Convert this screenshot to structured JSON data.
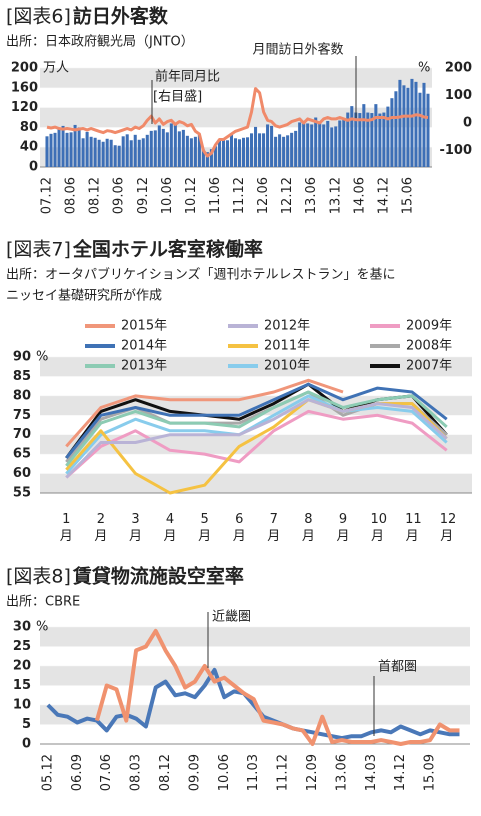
{
  "chart_data": [
    {
      "type": "bar",
      "figure_label": "[図表6]",
      "title": "訪日外客数",
      "source": [
        "出所：日本政府観光局（JNTO）"
      ],
      "y_unit": "万人",
      "y2_unit": "%",
      "annotations": [
        "[右目盛]"
      ],
      "bands": true,
      "categories": [
        "07.12",
        null,
        null,
        null,
        null,
        null,
        "08.06",
        null,
        null,
        null,
        null,
        null,
        "08.12",
        null,
        null,
        null,
        null,
        null,
        "09.06",
        null,
        null,
        null,
        null,
        null,
        "09.12",
        null,
        null,
        null,
        null,
        null,
        "10.06",
        null,
        null,
        null,
        null,
        null,
        "10.12",
        null,
        null,
        null,
        null,
        null,
        "11.06",
        null,
        null,
        null,
        null,
        null,
        "11.12",
        null,
        null,
        null,
        null,
        null,
        "12.06",
        null,
        null,
        null,
        null,
        null,
        "12.12",
        null,
        null,
        null,
        null,
        null,
        "13.06",
        null,
        null,
        null,
        null,
        null,
        "13.12",
        null,
        null,
        null,
        null,
        null,
        "14.06",
        null,
        null,
        null,
        null,
        null,
        "14.12",
        null,
        null,
        null,
        null,
        null,
        "15.06",
        null,
        null,
        null,
        null,
        null
      ],
      "ylim": [
        0,
        200
      ],
      "yticks": [
        0,
        40,
        80,
        120,
        160,
        200
      ],
      "y2lim": [
        -160,
        200
      ],
      "y2ticks": [
        -100,
        0,
        100,
        200
      ],
      "series": [
        {
          "name": "月間訪日外客数",
          "color": "#3d6fb6",
          "values": [
            62,
            67,
            69,
            77,
            83,
            69,
            70,
            85,
            80,
            58,
            71,
            61,
            59,
            55,
            51,
            57,
            55,
            44,
            43,
            62,
            66,
            54,
            65,
            55,
            58,
            65,
            73,
            74,
            84,
            77,
            70,
            88,
            87,
            72,
            75,
            63,
            58,
            61,
            65,
            35,
            30,
            36,
            42,
            56,
            55,
            54,
            68,
            58,
            56,
            59,
            60,
            68,
            81,
            68,
            68,
            86,
            83,
            61,
            66,
            61,
            64,
            69,
            73,
            90,
            92,
            88,
            86,
            100,
            91,
            86,
            93,
            80,
            82,
            94,
            95,
            110,
            123,
            110,
            109,
            127,
            110,
            109,
            127,
            108,
            110,
            122,
            139,
            153,
            176,
            165,
            160,
            178,
            172,
            150,
            170,
            148
          ]
        },
        {
          "name": "前年同月比",
          "color": "#f08a6a",
          "axis": "y2",
          "values": [
            -15,
            -18,
            -15,
            -20,
            -22,
            -20,
            -22,
            -25,
            -22,
            -20,
            -25,
            -20,
            -25,
            -30,
            -35,
            -28,
            -30,
            -35,
            -30,
            -25,
            -20,
            -25,
            -15,
            -20,
            -10,
            10,
            25,
            0,
            15,
            -5,
            5,
            10,
            -5,
            5,
            0,
            -10,
            -5,
            -30,
            -40,
            -100,
            -120,
            -110,
            -80,
            -60,
            -60,
            -50,
            -40,
            -30,
            -25,
            -20,
            -15,
            40,
            125,
            110,
            40,
            10,
            5,
            -10,
            -15,
            -10,
            -5,
            5,
            10,
            15,
            0,
            15,
            10,
            5,
            0,
            15,
            20,
            15,
            15,
            20,
            15,
            10,
            15,
            12,
            12,
            12,
            10,
            12,
            20,
            20,
            20,
            15,
            20,
            20,
            22,
            25,
            25,
            25,
            30,
            28,
            22,
            20
          ]
        }
      ]
    },
    {
      "type": "line",
      "figure_label": "[図表7]",
      "title": "全国ホテル客室稼働率",
      "source": [
        "出所：オータパブリケイションズ「週刊ホテルレストラン」を基に",
        "ニッセイ基礎研究所が作成"
      ],
      "y_unit": "%",
      "bands": true,
      "categories": [
        "1月",
        "2月",
        "3月",
        "4月",
        "5月",
        "6月",
        "7月",
        "8月",
        "9月",
        "10月",
        "11月",
        "12月"
      ],
      "ylim": [
        55,
        90
      ],
      "yticks": [
        55,
        60,
        65,
        70,
        75,
        80,
        85,
        90
      ],
      "series": [
        {
          "name": "2015年",
          "color": "#f0967a",
          "values": [
            67,
            77,
            80,
            79,
            79,
            79,
            81,
            84,
            81,
            null,
            null,
            null
          ]
        },
        {
          "name": "2014年",
          "color": "#3f72b5",
          "values": [
            64,
            75,
            77,
            75,
            75,
            75,
            79,
            83,
            79,
            82,
            81,
            74
          ]
        },
        {
          "name": "2013年",
          "color": "#8ccbb3",
          "values": [
            62,
            73,
            76,
            73,
            73,
            72,
            77,
            81,
            77,
            79,
            80,
            72
          ]
        },
        {
          "name": "2012年",
          "color": "#b9b3d6",
          "values": [
            59,
            68,
            68,
            70,
            70,
            70,
            74,
            79,
            76,
            78,
            77,
            69
          ]
        },
        {
          "name": "2011年",
          "color": "#f5c242",
          "values": [
            61,
            71,
            60,
            55,
            57,
            67,
            72,
            79,
            76,
            78,
            78,
            69
          ]
        },
        {
          "name": "2010年",
          "color": "#88ccec",
          "values": [
            60,
            70,
            74,
            71,
            71,
            70,
            75,
            80,
            76,
            77,
            76,
            68
          ]
        },
        {
          "name": "2009年",
          "color": "#ef9cc3",
          "values": [
            59,
            67,
            71,
            66,
            65,
            63,
            71,
            76,
            74,
            75,
            73,
            66
          ]
        },
        {
          "name": "2008年",
          "color": "#a9a9a9",
          "values": [
            63,
            74,
            77,
            73,
            73,
            73,
            77,
            81,
            75,
            78,
            78,
            70
          ]
        },
        {
          "name": "2007年",
          "color": "#111111",
          "values": [
            64,
            76,
            79,
            76,
            75,
            74,
            78,
            83,
            76,
            79,
            80,
            70
          ]
        }
      ]
    },
    {
      "type": "line",
      "figure_label": "[図表8]",
      "title": "賃貸物流施設空室率",
      "source": [
        "出所：CBRE"
      ],
      "y_unit": "%",
      "bands": true,
      "categories": [
        "05.12",
        null,
        null,
        "06.09",
        null,
        null,
        "07.06",
        null,
        null,
        "08.03",
        null,
        null,
        "08.12",
        null,
        null,
        "09.09",
        null,
        null,
        "10.06",
        null,
        null,
        "11.03",
        null,
        null,
        "11.12",
        null,
        null,
        "12.09",
        null,
        null,
        "13.06",
        null,
        null,
        "14.03",
        null,
        null,
        "14.12",
        null,
        null,
        "15.09",
        null,
        null,
        null
      ],
      "ylim": [
        0,
        30
      ],
      "yticks": [
        0,
        5,
        10,
        15,
        20,
        25,
        30
      ],
      "series": [
        {
          "name": "近畿圏",
          "color": "#f0926f",
          "values": [
            null,
            null,
            null,
            null,
            null,
            6,
            15,
            14,
            6,
            24,
            25,
            29,
            24,
            20,
            14.5,
            16,
            20,
            16,
            17,
            15,
            13,
            11.5,
            6,
            5.5,
            5,
            4,
            3.5,
            0,
            7,
            0.5,
            1,
            0.5,
            0.5,
            0.5,
            1,
            0.5,
            0,
            0.5,
            0.5,
            1,
            5,
            3.5,
            3.5
          ]
        },
        {
          "name": "首都圏",
          "color": "#4a78b8",
          "values": [
            10,
            7.5,
            7,
            5.5,
            6.5,
            6,
            3.5,
            7,
            7.5,
            6.5,
            4.5,
            14.5,
            16,
            12.5,
            13,
            12,
            15,
            19,
            12,
            13.5,
            13,
            10,
            7,
            6,
            5,
            4,
            3.5,
            3,
            2.5,
            2,
            1.5,
            2,
            2,
            3,
            3.5,
            3,
            4.5,
            3.5,
            2.5,
            3.5,
            3,
            2.5,
            2.5
          ]
        }
      ]
    }
  ]
}
